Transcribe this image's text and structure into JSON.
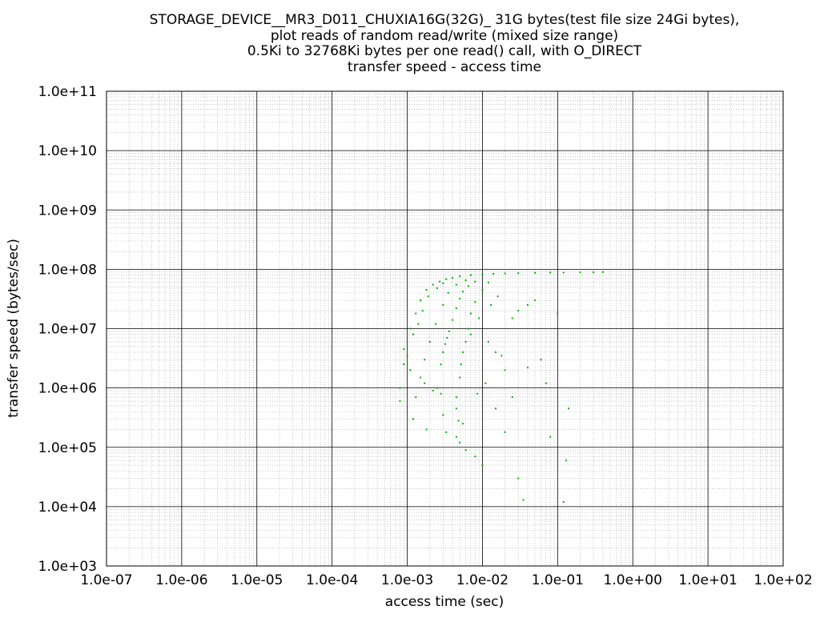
{
  "chart_data": {
    "type": "scatter",
    "title_lines": [
      "STORAGE_DEVICE__MR3_D011_CHUXIA16G(32G)_ 31G bytes(test file size 24Gi bytes),",
      "plot reads of random read/write (mixed size range)",
      "0.5Ki to 32768Ki bytes per one read() call, with O_DIRECT",
      "transfer speed - access time"
    ],
    "xlabel": "access time (sec)",
    "ylabel": "transfer speed (bytes/sec)",
    "x_scale": "log",
    "y_scale": "log",
    "xlim": [
      1e-07,
      100
    ],
    "ylim": [
      1000,
      100000000000
    ],
    "x_ticks": [
      "1.0e-07",
      "1.0e-06",
      "1.0e-05",
      "1.0e-04",
      "1.0e-03",
      "1.0e-02",
      "1.0e-01",
      "1.0e+00",
      "1.0e+01",
      "1.0e+02"
    ],
    "y_ticks": [
      "1.0e+03",
      "1.0e+04",
      "1.0e+05",
      "1.0e+06",
      "1.0e+07",
      "1.0e+08",
      "1.0e+09",
      "1.0e+10",
      "1.0e+11"
    ],
    "grid": true,
    "legend": "none",
    "series": [
      {
        "color": "#00b000",
        "points": [
          [
            0.0009,
            4500000
          ],
          [
            0.001,
            6000000
          ],
          [
            0.0011,
            10000000
          ],
          [
            0.0013,
            18000000
          ],
          [
            0.0015,
            30000000
          ],
          [
            0.0018,
            45000000
          ],
          [
            0.0022,
            55000000
          ],
          [
            0.0027,
            62000000
          ],
          [
            0.0033,
            68000000
          ],
          [
            0.004,
            72000000
          ],
          [
            0.005,
            76000000
          ],
          [
            0.007,
            80000000
          ],
          [
            0.01,
            82000000
          ],
          [
            0.014,
            84000000
          ],
          [
            0.02,
            85000000
          ],
          [
            0.03,
            86000000
          ],
          [
            0.05,
            87000000
          ],
          [
            0.08,
            88000000
          ],
          [
            0.12,
            88000000
          ],
          [
            0.2,
            89000000
          ],
          [
            0.3,
            89000000
          ],
          [
            0.4,
            90000000
          ],
          [
            0.0008,
            1000000
          ],
          [
            0.0009,
            2500000
          ],
          [
            0.001,
            3500000
          ],
          [
            0.0012,
            8000000
          ],
          [
            0.0011,
            2000000
          ],
          [
            0.0014,
            12000000
          ],
          [
            0.0016,
            20000000
          ],
          [
            0.0019,
            35000000
          ],
          [
            0.0025,
            48000000
          ],
          [
            0.003,
            58000000
          ],
          [
            0.0013,
            700000
          ],
          [
            0.0015,
            1500000
          ],
          [
            0.0017,
            3000000
          ],
          [
            0.002,
            6000000
          ],
          [
            0.0024,
            12000000
          ],
          [
            0.003,
            25000000
          ],
          [
            0.0035,
            40000000
          ],
          [
            0.0045,
            55000000
          ],
          [
            0.006,
            65000000
          ],
          [
            0.0025,
            1000000
          ],
          [
            0.0028,
            2500000
          ],
          [
            0.003,
            4000000
          ],
          [
            0.0032,
            5500000
          ],
          [
            0.0034,
            7000000
          ],
          [
            0.0036,
            9000000
          ],
          [
            0.004,
            14000000
          ],
          [
            0.0045,
            22000000
          ],
          [
            0.005,
            32000000
          ],
          [
            0.0055,
            42000000
          ],
          [
            0.0065,
            52000000
          ],
          [
            0.008,
            62000000
          ],
          [
            0.0045,
            700000
          ],
          [
            0.005,
            1500000
          ],
          [
            0.0052,
            2500000
          ],
          [
            0.0055,
            4000000
          ],
          [
            0.006,
            6000000
          ],
          [
            0.0065,
            10000000
          ],
          [
            0.007,
            18000000
          ],
          [
            0.008,
            28000000
          ],
          [
            0.01,
            45000000
          ],
          [
            0.012,
            60000000
          ],
          [
            0.0008,
            600000
          ],
          [
            0.0012,
            300000
          ],
          [
            0.0018,
            200000
          ],
          [
            0.003,
            350000
          ],
          [
            0.0033,
            180000
          ],
          [
            0.0045,
            150000
          ],
          [
            0.005,
            120000
          ],
          [
            0.006,
            90000
          ],
          [
            0.0045,
            450000
          ],
          [
            0.0048,
            280000
          ],
          [
            0.0055,
            250000
          ],
          [
            0.0028,
            800000
          ],
          [
            0.0022,
            900000
          ],
          [
            0.0017,
            1200000
          ],
          [
            0.008,
            70000
          ],
          [
            0.01,
            50000
          ],
          [
            0.015,
            450000
          ],
          [
            0.02,
            180000
          ],
          [
            0.025,
            700000
          ],
          [
            0.03,
            30000
          ],
          [
            0.035,
            13000
          ],
          [
            0.04,
            2200000
          ],
          [
            0.06,
            3000000
          ],
          [
            0.07,
            1200000
          ],
          [
            0.08,
            150000
          ],
          [
            0.1,
            18000000
          ],
          [
            0.12,
            12000
          ],
          [
            0.13,
            60000
          ],
          [
            0.14,
            450000
          ],
          [
            0.02,
            2000000
          ],
          [
            0.015,
            4000000
          ],
          [
            0.012,
            6000000
          ],
          [
            0.025,
            15000000
          ],
          [
            0.03,
            20000000
          ],
          [
            0.04,
            25000000
          ],
          [
            0.05,
            30000000
          ],
          [
            0.007,
            8000000
          ],
          [
            0.009,
            15000000
          ],
          [
            0.0085,
            800000
          ],
          [
            0.011,
            1200000
          ],
          [
            0.018,
            3500000
          ],
          [
            0.013,
            25000000
          ],
          [
            0.016,
            35000000
          ]
        ]
      }
    ]
  }
}
